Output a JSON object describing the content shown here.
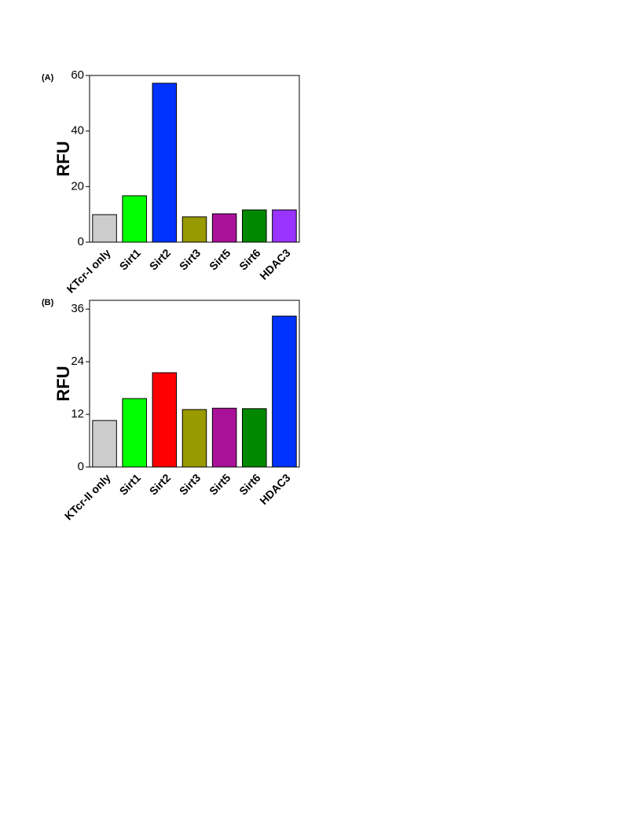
{
  "chart_data": [
    {
      "type": "bar",
      "panel": "(A)",
      "y_label": "RFU",
      "categories": [
        "KTcr-I only",
        "Sirt1",
        "Sirt2",
        "Sirt3",
        "Sirt5",
        "Sirt6",
        "HDAC3"
      ],
      "values": [
        9.9,
        16.7,
        57.2,
        9.1,
        10.2,
        11.6,
        11.6
      ],
      "colors": [
        "#cccccc",
        "#00ff00",
        "#0033ff",
        "#999900",
        "#aa1199",
        "#008800",
        "#9933ff"
      ],
      "ylim": [
        0,
        60
      ],
      "yticks": [
        0,
        20,
        40,
        60
      ],
      "grid": false
    },
    {
      "type": "bar",
      "panel": "(B)",
      "y_label": "RFU",
      "categories": [
        "KTcr-II only",
        "Sirt1",
        "Sirt2",
        "Sirt3",
        "Sirt5",
        "Sirt6",
        "HDAC3"
      ],
      "values": [
        10.6,
        15.6,
        21.5,
        13.1,
        13.4,
        13.3,
        34.4
      ],
      "colors": [
        "#cccccc",
        "#00ff00",
        "#ff0000",
        "#999900",
        "#aa1199",
        "#008800",
        "#0033ff"
      ],
      "ylim": [
        0,
        38
      ],
      "yticks": [
        0,
        12,
        24,
        36
      ],
      "grid": false
    }
  ]
}
